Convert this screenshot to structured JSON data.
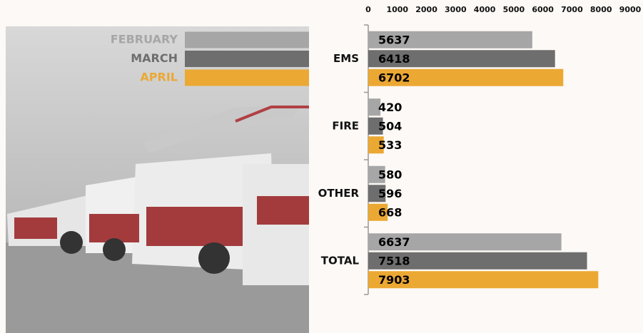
{
  "chart_data": {
    "type": "bar",
    "orientation": "horizontal",
    "categories": [
      "EMS",
      "FIRE",
      "OTHER",
      "TOTAL"
    ],
    "series": [
      {
        "name": "FEBRUARY",
        "color": "#a6a6a6",
        "values": [
          5637,
          420,
          580,
          6637
        ]
      },
      {
        "name": "MARCH",
        "color": "#6e6e6e",
        "values": [
          6418,
          504,
          596,
          7518
        ]
      },
      {
        "name": "APRIL",
        "color": "#eba833",
        "values": [
          6702,
          533,
          668,
          7903
        ]
      }
    ],
    "xlim": [
      0,
      9000
    ],
    "xticks": [
      0,
      1000,
      2000,
      3000,
      4000,
      5000,
      6000,
      7000,
      8000,
      9000
    ],
    "grid": false,
    "legend": "left"
  }
}
